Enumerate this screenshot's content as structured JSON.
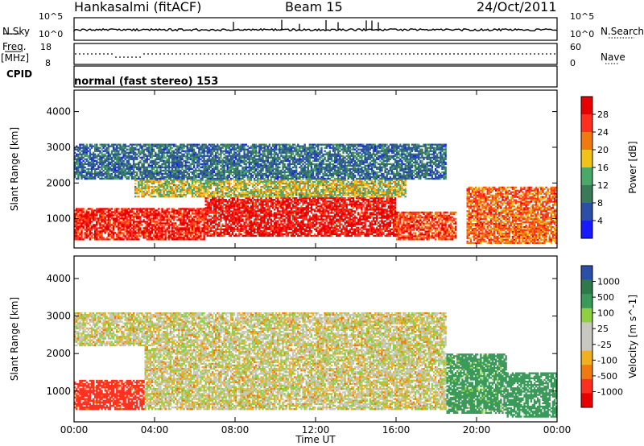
{
  "header": {
    "station": "Hankasalmi (fitACF)",
    "beam": "Beam 15",
    "date": "24/Oct/2011"
  },
  "top_panels": {
    "nsky_label": "N.Sky",
    "nsearch_label": "N.Search",
    "freq_label": "Freq.",
    "freq_unit": "[MHz]",
    "nave_label": "Nave",
    "cpid_label": "CPID",
    "cpid_text": "normal (fast stereo) 153",
    "noise_ticks_top": "10^5",
    "noise_ticks_bottom": "10^0",
    "freq_ticks_top": "18",
    "freq_ticks_bottom": "8",
    "nave_ticks_top": "60",
    "nave_ticks_bottom": "0"
  },
  "colors": {
    "power_scale": [
      "#1a1aff",
      "#2b4fa8",
      "#3a7a58",
      "#4aa86a",
      "#f0c21a",
      "#f07a10",
      "#ff3020",
      "#e80000"
    ],
    "velocity_scale": [
      "#e80000",
      "#ff3020",
      "#f07a10",
      "#f0b020",
      "#c8c8c0",
      "#c8c8c0",
      "#90d040",
      "#3a9a5a",
      "#2e7a4a",
      "#2b4fa8"
    ]
  },
  "chart_data": [
    {
      "type": "heatmap",
      "panel": "power",
      "ylabel": "Slant Range [km]",
      "xlabel": "",
      "x_range": [
        "00:00",
        "24:00"
      ],
      "ylim": [
        180,
        4600
      ],
      "y_ticks": [
        "1000",
        "2000",
        "3000",
        "4000"
      ],
      "x_ticks": [
        "00:00",
        "04:00",
        "08:00",
        "12:00",
        "16:00",
        "20:00",
        "00:00"
      ],
      "colorbar": {
        "label": "Power [dB]",
        "ticks": [
          "4",
          "8",
          "12",
          "16",
          "20",
          "24",
          "28"
        ],
        "range": [
          0,
          30
        ]
      },
      "regions": [
        {
          "t0": 0.0,
          "t1": 6.5,
          "r0": 400,
          "r1": 1300,
          "level": 26
        },
        {
          "t0": 6.5,
          "t1": 16.0,
          "r0": 500,
          "r1": 1600,
          "level": 27
        },
        {
          "t0": 3.0,
          "t1": 16.5,
          "r0": 1600,
          "r1": 2100,
          "level": 16
        },
        {
          "t0": 0.0,
          "t1": 18.5,
          "r0": 2100,
          "r1": 3100,
          "level": 8
        },
        {
          "t0": 16.0,
          "t1": 19.0,
          "r0": 400,
          "r1": 1200,
          "level": 24
        },
        {
          "t0": 19.5,
          "t1": 24.0,
          "r0": 300,
          "r1": 1900,
          "level": 22
        }
      ]
    },
    {
      "type": "heatmap",
      "panel": "velocity",
      "ylabel": "Slant Range [km]",
      "xlabel": "Time UT",
      "x_range": [
        "00:00",
        "24:00"
      ],
      "ylim": [
        180,
        4600
      ],
      "y_ticks": [
        "1000",
        "2000",
        "3000",
        "4000"
      ],
      "x_ticks": [
        "00:00",
        "04:00",
        "08:00",
        "12:00",
        "16:00",
        "20:00",
        "00:00"
      ],
      "colorbar": {
        "label": "Velocity [m s^-1]",
        "ticks": [
          "1000",
          "500",
          "100",
          "25",
          "-25",
          "-100",
          "-500",
          "-1000"
        ]
      },
      "regions": [
        {
          "t0": 0.0,
          "t1": 3.5,
          "r0": 500,
          "r1": 1300,
          "velocity": -150
        },
        {
          "t0": 3.5,
          "t1": 18.5,
          "r0": 500,
          "r1": 2200,
          "velocity": 0
        },
        {
          "t0": 0.0,
          "t1": 18.5,
          "r0": 2200,
          "r1": 3100,
          "velocity": 0
        },
        {
          "t0": 18.5,
          "t1": 21.5,
          "r0": 400,
          "r1": 2000,
          "velocity": 150
        },
        {
          "t0": 21.5,
          "t1": 24.0,
          "r0": 300,
          "r1": 1500,
          "velocity": 300
        }
      ]
    }
  ]
}
